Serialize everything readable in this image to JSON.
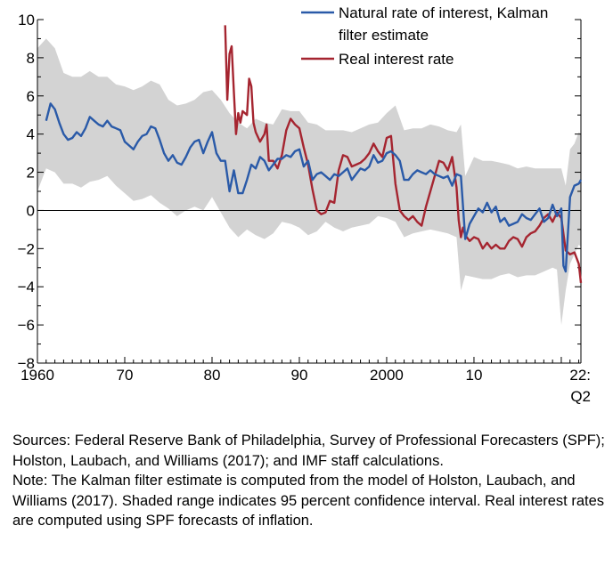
{
  "chart_data": {
    "type": "line",
    "title": "",
    "xlabel": "",
    "ylabel": "",
    "xlim": [
      1960,
      2022.25
    ],
    "ylim": [
      -8,
      10
    ],
    "yticks": [
      10,
      8,
      6,
      4,
      2,
      0,
      -2,
      -4,
      -6,
      -8
    ],
    "ytick_labels": [
      "10",
      "8",
      "6",
      "4",
      "2",
      "0",
      "−2",
      "−4",
      "−6",
      "−8"
    ],
    "xticks": [
      {
        "value": 1960,
        "label": "1960",
        "label2": ""
      },
      {
        "value": 1970,
        "label": "70",
        "label2": ""
      },
      {
        "value": 1980,
        "label": "80",
        "label2": ""
      },
      {
        "value": 1990,
        "label": "90",
        "label2": ""
      },
      {
        "value": 2000,
        "label": "2000",
        "label2": ""
      },
      {
        "value": 2010,
        "label": "10",
        "label2": ""
      },
      {
        "value": 2022.25,
        "label": "22:",
        "label2": "Q2"
      }
    ],
    "zero_line": true,
    "grid": false,
    "legend_position": "top-right",
    "legend_lines": [
      [
        "Natural rate of interest, Kalman",
        "filter estimate"
      ],
      [
        "Real interest rate"
      ]
    ],
    "colors": {
      "natural": "#2a5aa8",
      "real": "#a52530",
      "band": "#d3d3d3"
    },
    "series": [
      {
        "name": "Natural rate of interest, Kalman filter estimate",
        "x": [
          1961.0,
          1961.5,
          1962.0,
          1962.5,
          1963.0,
          1963.5,
          1964.0,
          1964.5,
          1965.0,
          1965.5,
          1966.0,
          1966.5,
          1967.0,
          1967.5,
          1968.0,
          1968.5,
          1969.0,
          1969.5,
          1970.0,
          1970.5,
          1971.0,
          1971.5,
          1972.0,
          1972.5,
          1973.0,
          1973.5,
          1974.0,
          1974.5,
          1975.0,
          1975.5,
          1976.0,
          1976.5,
          1977.0,
          1977.5,
          1978.0,
          1978.5,
          1979.0,
          1979.5,
          1980.0,
          1980.5,
          1981.0,
          1981.5,
          1982.0,
          1982.5,
          1983.0,
          1983.5,
          1984.0,
          1984.5,
          1985.0,
          1985.5,
          1986.0,
          1986.5,
          1987.0,
          1987.5,
          1988.0,
          1988.5,
          1989.0,
          1989.5,
          1990.0,
          1990.5,
          1991.0,
          1991.5,
          1992.0,
          1992.5,
          1993.0,
          1993.5,
          1994.0,
          1994.5,
          1995.0,
          1995.5,
          1996.0,
          1996.5,
          1997.0,
          1997.5,
          1998.0,
          1998.5,
          1999.0,
          1999.5,
          2000.0,
          2000.5,
          2001.0,
          2001.5,
          2002.0,
          2002.5,
          2003.0,
          2003.5,
          2004.0,
          2004.5,
          2005.0,
          2005.5,
          2006.0,
          2006.5,
          2007.0,
          2007.5,
          2008.0,
          2008.5,
          2009.0,
          2009.5,
          2010.0,
          2010.5,
          2011.0,
          2011.5,
          2012.0,
          2012.5,
          2013.0,
          2013.5,
          2014.0,
          2014.5,
          2015.0,
          2015.5,
          2016.0,
          2016.5,
          2017.0,
          2017.5,
          2018.0,
          2018.5,
          2019.0,
          2019.5,
          2020.0,
          2020.25,
          2020.5,
          2021.0,
          2021.5,
          2022.0,
          2022.25
        ],
        "y": [
          4.7,
          5.6,
          5.3,
          4.6,
          4.0,
          3.7,
          3.8,
          4.1,
          3.9,
          4.3,
          4.9,
          4.7,
          4.5,
          4.4,
          4.7,
          4.4,
          4.3,
          4.2,
          3.6,
          3.4,
          3.2,
          3.6,
          3.9,
          4.0,
          4.4,
          4.3,
          3.7,
          3.0,
          2.6,
          2.9,
          2.5,
          2.4,
          2.8,
          3.3,
          3.6,
          3.7,
          3.0,
          3.6,
          4.1,
          3.0,
          2.6,
          2.6,
          1.0,
          2.1,
          0.9,
          0.9,
          1.6,
          2.4,
          2.2,
          2.8,
          2.6,
          2.1,
          2.4,
          2.7,
          2.7,
          2.9,
          2.8,
          3.1,
          3.2,
          2.3,
          2.6,
          1.6,
          1.9,
          2.0,
          1.8,
          1.6,
          1.9,
          1.8,
          2.0,
          2.2,
          1.6,
          1.9,
          2.2,
          2.1,
          2.3,
          2.9,
          2.5,
          2.6,
          3.0,
          3.1,
          2.9,
          2.6,
          1.6,
          1.6,
          1.9,
          2.1,
          2.0,
          1.9,
          2.1,
          1.9,
          1.8,
          1.7,
          1.8,
          1.3,
          1.9,
          1.8,
          -1.5,
          -0.7,
          -0.3,
          0.1,
          -0.1,
          0.4,
          -0.1,
          0.2,
          -0.6,
          -0.4,
          -0.8,
          -0.7,
          -0.6,
          -0.2,
          -0.4,
          -0.5,
          -0.2,
          0.1,
          -0.6,
          -0.4,
          0.3,
          -0.3,
          0.1,
          -2.9,
          -3.2,
          0.7,
          1.3,
          1.4,
          1.6
        ]
      },
      {
        "name": "Real interest rate",
        "x": [
          1981.5,
          1981.75,
          1982.0,
          1982.25,
          1982.5,
          1982.75,
          1983.0,
          1983.25,
          1983.5,
          1984.0,
          1984.25,
          1984.5,
          1984.75,
          1985.0,
          1985.5,
          1986.0,
          1986.25,
          1986.5,
          1987.0,
          1987.5,
          1988.0,
          1988.5,
          1989.0,
          1989.5,
          1990.0,
          1990.5,
          1991.0,
          1991.5,
          1992.0,
          1992.5,
          1993.0,
          1993.5,
          1994.0,
          1994.5,
          1995.0,
          1995.5,
          1996.0,
          1996.5,
          1997.0,
          1997.5,
          1998.0,
          1998.5,
          1999.0,
          1999.5,
          2000.0,
          2000.5,
          2001.0,
          2001.5,
          2002.0,
          2002.5,
          2003.0,
          2003.5,
          2004.0,
          2004.5,
          2005.0,
          2005.5,
          2006.0,
          2006.5,
          2007.0,
          2007.5,
          2008.0,
          2008.25,
          2008.5,
          2008.75,
          2009.0,
          2009.5,
          2010.0,
          2010.5,
          2011.0,
          2011.5,
          2012.0,
          2012.5,
          2013.0,
          2013.5,
          2014.0,
          2014.5,
          2015.0,
          2015.5,
          2016.0,
          2016.5,
          2017.0,
          2017.5,
          2018.0,
          2018.5,
          2019.0,
          2019.5,
          2020.0,
          2020.5,
          2021.0,
          2021.5,
          2022.0,
          2022.25
        ],
        "y": [
          9.7,
          5.8,
          8.2,
          8.6,
          6.2,
          4.0,
          5.1,
          4.6,
          5.2,
          5.0,
          6.9,
          6.5,
          4.6,
          4.1,
          3.6,
          4.0,
          4.5,
          2.6,
          2.6,
          2.2,
          2.9,
          4.2,
          4.8,
          4.5,
          4.3,
          3.3,
          2.4,
          1.1,
          0.0,
          -0.2,
          -0.1,
          0.5,
          0.4,
          2.1,
          2.9,
          2.8,
          2.3,
          2.4,
          2.5,
          2.7,
          3.0,
          3.5,
          3.1,
          2.8,
          3.8,
          3.9,
          1.4,
          0.0,
          -0.3,
          -0.5,
          -0.3,
          -0.6,
          -0.8,
          0.2,
          1.0,
          1.8,
          2.6,
          2.5,
          2.1,
          2.8,
          1.2,
          -0.5,
          -1.4,
          -0.9,
          -1.3,
          -1.6,
          -1.4,
          -1.5,
          -2.0,
          -1.7,
          -2.0,
          -1.8,
          -2.0,
          -2.0,
          -1.6,
          -1.4,
          -1.5,
          -1.9,
          -1.4,
          -1.2,
          -1.1,
          -0.8,
          -0.4,
          -0.2,
          -0.6,
          -0.1,
          -0.4,
          -2.1,
          -2.3,
          -2.2,
          -2.8,
          -3.8
        ]
      }
    ],
    "confidence_band": {
      "name": "95 percent confidence interval",
      "x": [
        1960,
        1961,
        1962,
        1963,
        1964,
        1965,
        1966,
        1967,
        1968,
        1969,
        1970,
        1971,
        1972,
        1973,
        1974,
        1975,
        1976,
        1977,
        1978,
        1979,
        1980,
        1981,
        1982,
        1983,
        1984,
        1985,
        1986,
        1987,
        1988,
        1989,
        1990,
        1991,
        1992,
        1993,
        1994,
        1995,
        1996,
        1997,
        1998,
        1999,
        2000,
        2001,
        2002,
        2003,
        2004,
        2005,
        2006,
        2007,
        2008,
        2008.5,
        2009,
        2010,
        2011,
        2012,
        2013,
        2014,
        2015,
        2016,
        2017,
        2018,
        2019,
        2019.5,
        2020,
        2020.5,
        2021,
        2021.5,
        2022,
        2022.25
      ],
      "upper": [
        8.5,
        9.0,
        8.5,
        7.2,
        7.0,
        7.0,
        7.3,
        7.0,
        7.0,
        6.6,
        6.5,
        6.3,
        6.5,
        6.8,
        6.6,
        5.8,
        5.5,
        5.6,
        5.8,
        6.2,
        6.3,
        5.8,
        5.1,
        4.6,
        4.3,
        4.8,
        4.6,
        4.5,
        5.3,
        5.2,
        5.2,
        4.6,
        4.5,
        4.2,
        4.2,
        4.2,
        4.1,
        4.3,
        4.5,
        4.6,
        5.1,
        5.5,
        4.2,
        4.3,
        4.3,
        4.5,
        4.4,
        4.2,
        4.1,
        4.5,
        1.8,
        2.8,
        2.6,
        2.6,
        2.5,
        2.4,
        2.2,
        2.3,
        2.2,
        2.2,
        2.2,
        2.2,
        2.2,
        1.3,
        3.2,
        3.5,
        4.1,
        4.0
      ],
      "lower": [
        1.0,
        2.2,
        2.0,
        1.4,
        1.4,
        1.2,
        1.5,
        1.6,
        1.8,
        1.3,
        0.9,
        0.5,
        0.6,
        0.8,
        0.4,
        0.1,
        -0.3,
        0.0,
        0.2,
        0.0,
        0.7,
        -0.1,
        -0.9,
        -1.4,
        -1.0,
        -1.3,
        -1.5,
        -1.2,
        -0.6,
        -0.7,
        -0.9,
        -1.3,
        -1.1,
        -0.6,
        -0.9,
        -1.1,
        -0.9,
        -0.8,
        -0.7,
        -0.3,
        -0.4,
        -0.6,
        -1.4,
        -1.2,
        -1.1,
        -1.0,
        -1.1,
        -1.2,
        -1.4,
        -4.2,
        -3.4,
        -3.5,
        -3.6,
        -3.6,
        -3.4,
        -3.3,
        -3.5,
        -3.4,
        -3.4,
        -3.2,
        -3.0,
        -3.1,
        -6.0,
        -4.2,
        -2.8,
        -2.3,
        -1.8,
        -1.9
      ]
    }
  },
  "notes": {
    "sources": "Sources: Federal Reserve Bank of Philadelphia, Survey of Professional Forecasters (SPF); Holston, Laubach, and Williams (2017); and IMF staff calculations.",
    "note": "Note: The Kalman filter estimate is computed from the model of Holston, Laubach, and Williams (2017). Shaded range indicates 95 percent confidence interval. Real interest rates are computed using SPF forecasts of inflation."
  }
}
